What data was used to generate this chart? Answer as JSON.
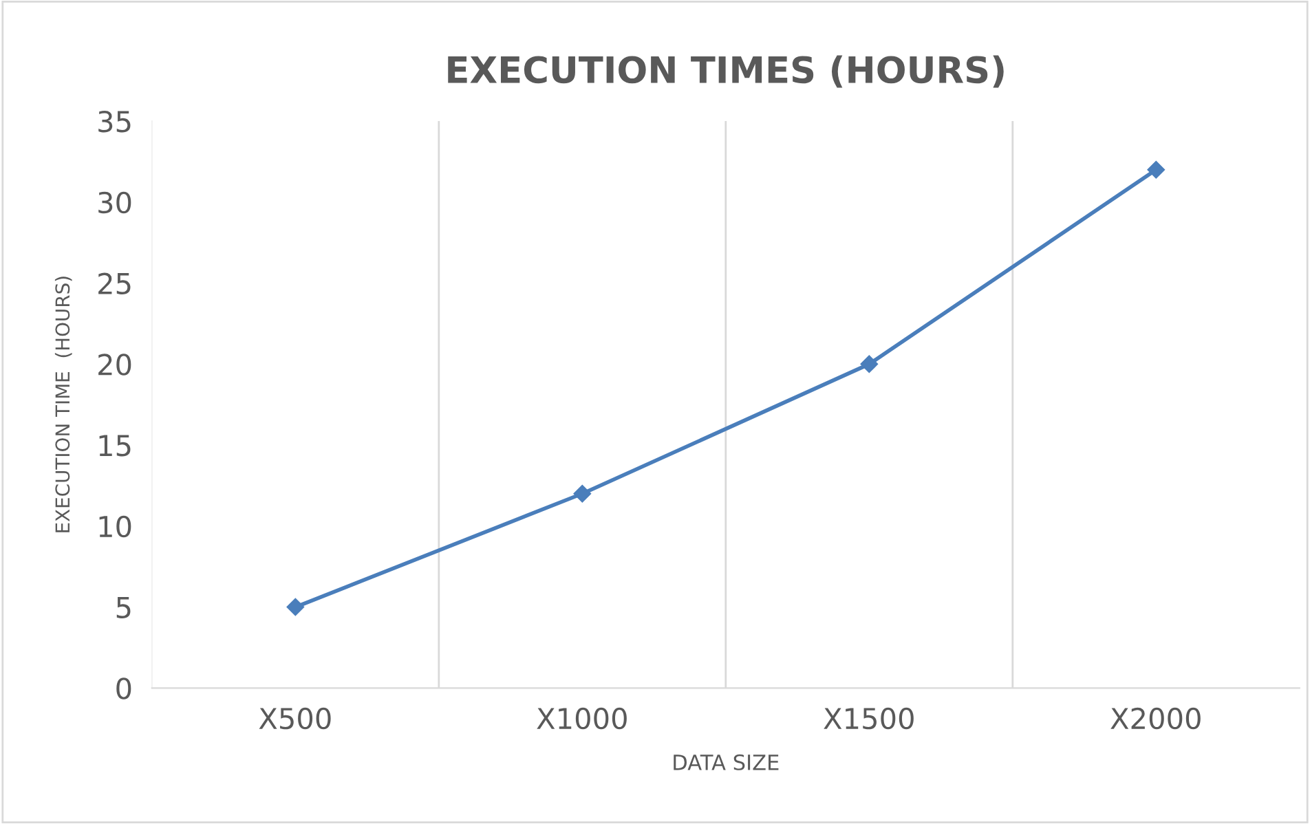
{
  "chart_data": {
    "type": "line",
    "title": "EXECUTION TIMES (HOURS)",
    "xlabel": "DATA SIZE",
    "ylabel": "EXECUTION TIME  (HOURS)",
    "categories": [
      "X500",
      "X1000",
      "X1500",
      "X2000"
    ],
    "series": [
      {
        "color": "#4a7ebb",
        "values": [
          5,
          12,
          20,
          32
        ]
      }
    ],
    "ylim": [
      0,
      35
    ],
    "yticks": [
      0,
      5,
      10,
      15,
      20,
      25,
      30,
      35
    ],
    "grid": "x",
    "marker": "diamond",
    "line_style": "solid"
  }
}
